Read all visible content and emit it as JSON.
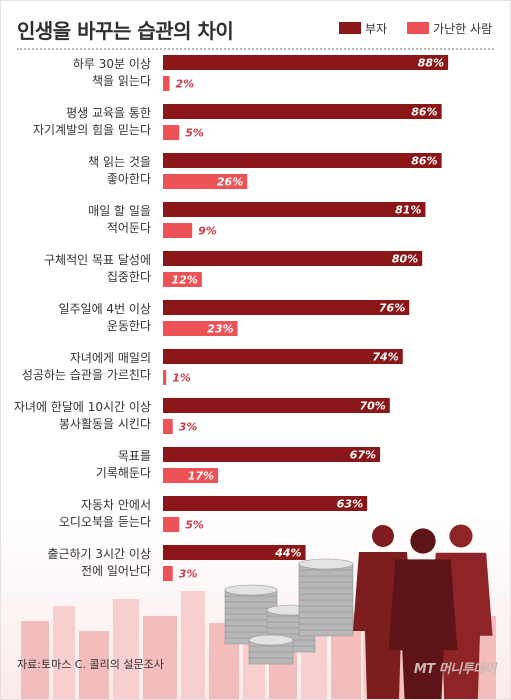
{
  "title": "인생을 바꾸는 습관의 차이",
  "legend": {
    "rich": "부자",
    "poor": "가난한 사람"
  },
  "colors": {
    "rich": "#8b1618",
    "poor": "#ec5256",
    "poor_text": "#c9404a"
  },
  "source": "자료:토마스 C. 콜리의 설문조사",
  "logo": "MT 머니투데이",
  "chart_data": {
    "type": "bar",
    "orientation": "horizontal",
    "title": "인생을 바꾸는 습관의 차이",
    "xlim": [
      0,
      100
    ],
    "value_suffix": "%",
    "legend_position": "top-right",
    "categories": [
      [
        "하루 30분 이상",
        "책을 읽는다"
      ],
      [
        "평생 교육을 통한",
        "자기계발의 힘을 믿는다"
      ],
      [
        "책 읽는 것을",
        "좋아한다"
      ],
      [
        "매일 할 일을",
        "적어둔다"
      ],
      [
        "구체적인 목표 달성에",
        "집중한다"
      ],
      [
        "일주일에 4번 이상",
        "운동한다"
      ],
      [
        "자녀에게 매일의",
        "성공하는 습관을 가르친다"
      ],
      [
        "자녀에 한달에 10시간 이상",
        "봉사활동을 시킨다"
      ],
      [
        "목표를",
        "기록해둔다"
      ],
      [
        "자동차 안에서",
        "오디오북을 듣는다"
      ],
      [
        "출근하기 3시간 이상",
        "전에 일어난다"
      ]
    ],
    "series": [
      {
        "name": "부자",
        "values": [
          88,
          86,
          86,
          81,
          80,
          76,
          74,
          70,
          67,
          63,
          44
        ]
      },
      {
        "name": "가난한 사람",
        "values": [
          2,
          5,
          26,
          9,
          12,
          23,
          1,
          3,
          17,
          5,
          3
        ]
      }
    ]
  }
}
